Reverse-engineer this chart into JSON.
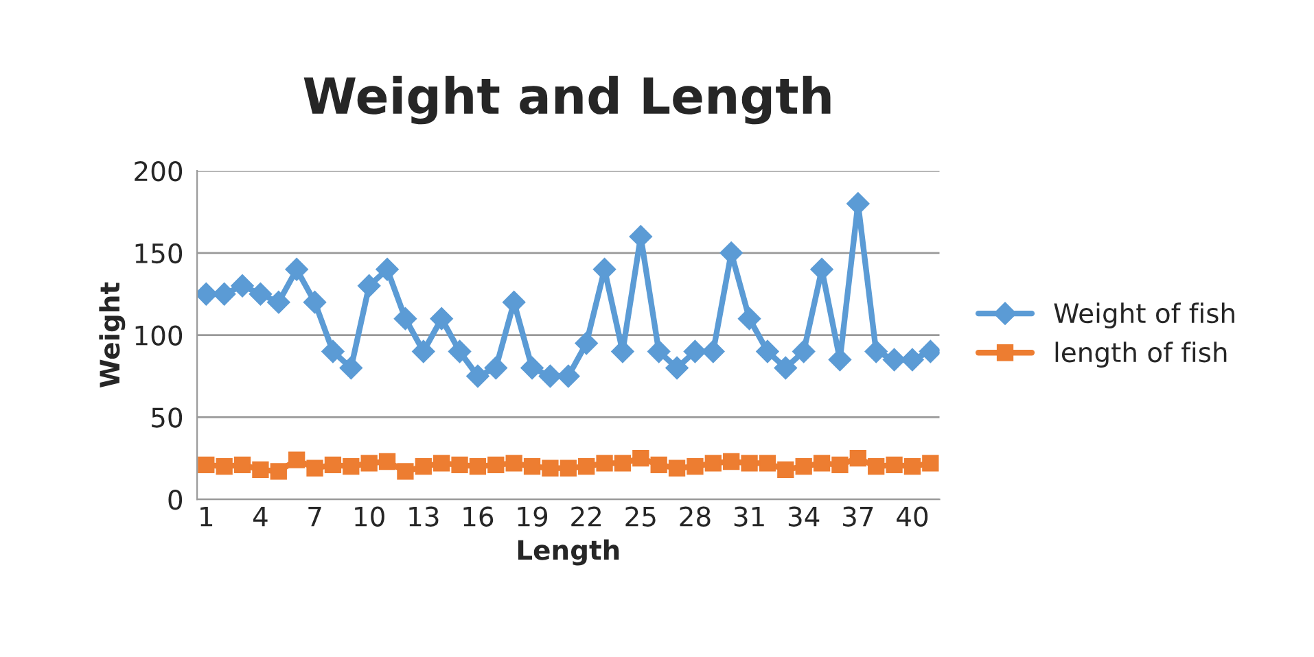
{
  "chart_data": {
    "type": "line",
    "title": "Weight and Length",
    "xlabel": "Length",
    "ylabel": "Weight",
    "categories": [
      "1",
      null,
      null,
      "4",
      null,
      null,
      "7",
      null,
      null,
      "10",
      null,
      null,
      "13",
      null,
      null,
      "16",
      null,
      null,
      "19",
      null,
      null,
      "22",
      null,
      null,
      "25",
      null,
      null,
      "28",
      null,
      null,
      "31",
      null,
      null,
      "34",
      null,
      null,
      "37",
      null,
      null,
      "40",
      null
    ],
    "series": [
      {
        "name": "Weight of fish",
        "color": "#5b9bd5",
        "marker": "diamond",
        "values": [
          125,
          125,
          130,
          125,
          120,
          140,
          120,
          90,
          80,
          130,
          140,
          110,
          90,
          110,
          90,
          75,
          80,
          120,
          80,
          75,
          75,
          95,
          140,
          90,
          160,
          90,
          80,
          90,
          90,
          150,
          110,
          90,
          80,
          90,
          140,
          85,
          180,
          90,
          85,
          85,
          90
        ]
      },
      {
        "name": "length of fish",
        "color": "#ed7d31",
        "marker": "square",
        "values": [
          21,
          20,
          21,
          18,
          17,
          24,
          19,
          21,
          20,
          22,
          23,
          17,
          20,
          22,
          21,
          20,
          21,
          22,
          20,
          19,
          19,
          20,
          22,
          22,
          25,
          21,
          19,
          20,
          22,
          23,
          22,
          22,
          18,
          20,
          22,
          21,
          25,
          20,
          21,
          20,
          22
        ]
      }
    ],
    "ylim": [
      0,
      200
    ],
    "yticks": [
      0,
      50,
      100,
      150,
      200
    ],
    "grid": "y",
    "legend": "right",
    "line_style": "solid"
  }
}
